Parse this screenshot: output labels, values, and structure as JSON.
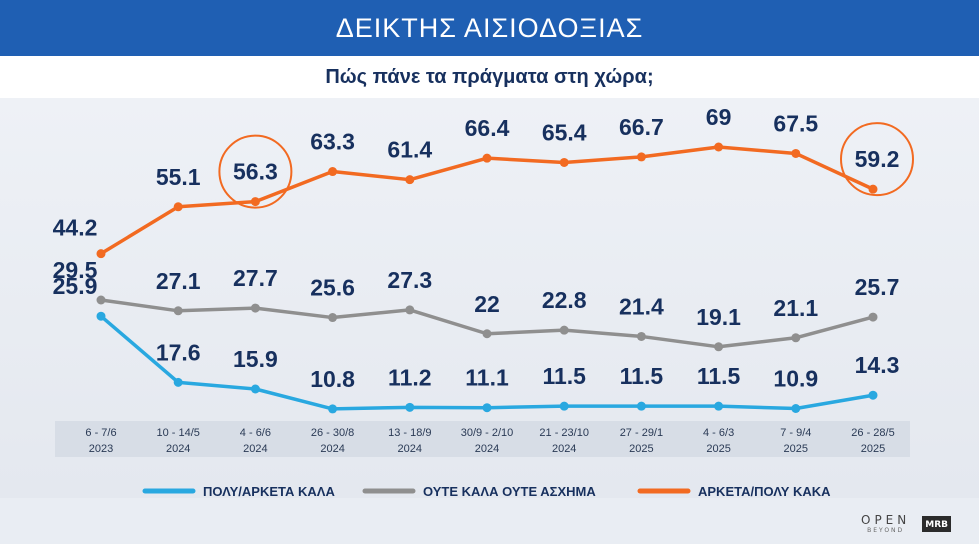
{
  "header": {
    "title": "ΔΕΙΚΤΗΣ ΑΙΣΙΟΔΟΞΙΑΣ",
    "subtitle": "Πώς πάνε τα πράγματα στη χώρα;"
  },
  "branding": {
    "logo_main": "OPEN",
    "logo_sub": "BEYOND",
    "logo_partner": "MRB"
  },
  "chart_data": {
    "type": "line",
    "categories": [
      {
        "line1": "6 - 7/6",
        "line2": "2023"
      },
      {
        "line1": "10 - 14/5",
        "line2": "2024"
      },
      {
        "line1": "4 - 6/6",
        "line2": "2024"
      },
      {
        "line1": "26 - 30/8",
        "line2": "2024"
      },
      {
        "line1": "13 - 18/9",
        "line2": "2024"
      },
      {
        "line1": "30/9 - 2/10",
        "line2": "2024"
      },
      {
        "line1": "21 - 23/10",
        "line2": "2024"
      },
      {
        "line1": "27 - 29/1",
        "line2": "2025"
      },
      {
        "line1": "4 - 6/3",
        "line2": "2025"
      },
      {
        "line1": "7 - 9/4",
        "line2": "2025"
      },
      {
        "line1": "26 - 28/5",
        "line2": "2025"
      }
    ],
    "series": [
      {
        "name": "ΑΡΚΕΤΑ/ΠΟΛΥ ΚΑΚΑ",
        "color": "#f26a21",
        "values": [
          44.2,
          55.1,
          56.3,
          63.3,
          61.4,
          66.4,
          65.4,
          66.7,
          69,
          67.5,
          59.2
        ],
        "labels": [
          "44.2",
          "55.1",
          "56.3",
          "63.3",
          "61.4",
          "66.4",
          "65.4",
          "66.7",
          "69",
          "67.5",
          "59.2"
        ],
        "highlighted": [
          2,
          10
        ]
      },
      {
        "name": "ΟΥΤΕ ΚΑΛΑ ΟΥΤΕ ΑΣΧΗΜΑ",
        "color": "#8f8f8f",
        "values": [
          29.5,
          27.1,
          27.7,
          25.6,
          27.3,
          22,
          22.8,
          21.4,
          19.1,
          21.1,
          25.7
        ],
        "labels": [
          "29.5",
          "27.1",
          "27.7",
          "25.6",
          "27.3",
          "22",
          "22.8",
          "21.4",
          "19.1",
          "21.1",
          "25.7"
        ],
        "highlighted": []
      },
      {
        "name": "ΠΟΛΥ/ΑΡΚΕΤΑ ΚΑΛΑ",
        "color": "#29a8e0",
        "values": [
          25.9,
          17.6,
          15.9,
          10.8,
          11.2,
          11.1,
          11.5,
          11.5,
          11.5,
          10.9,
          14.3
        ],
        "labels": [
          "25.9",
          "17.6",
          "15.9",
          "10.8",
          "11.2",
          "11.1",
          "11.5",
          "11.5",
          "11.5",
          "10.9",
          "14.3"
        ],
        "highlighted": []
      }
    ],
    "legend_order": [
      2,
      1,
      0
    ],
    "label_color": "#17305e",
    "highlight_color": "#f26a21",
    "legend_position": "bottom",
    "grid": false
  }
}
